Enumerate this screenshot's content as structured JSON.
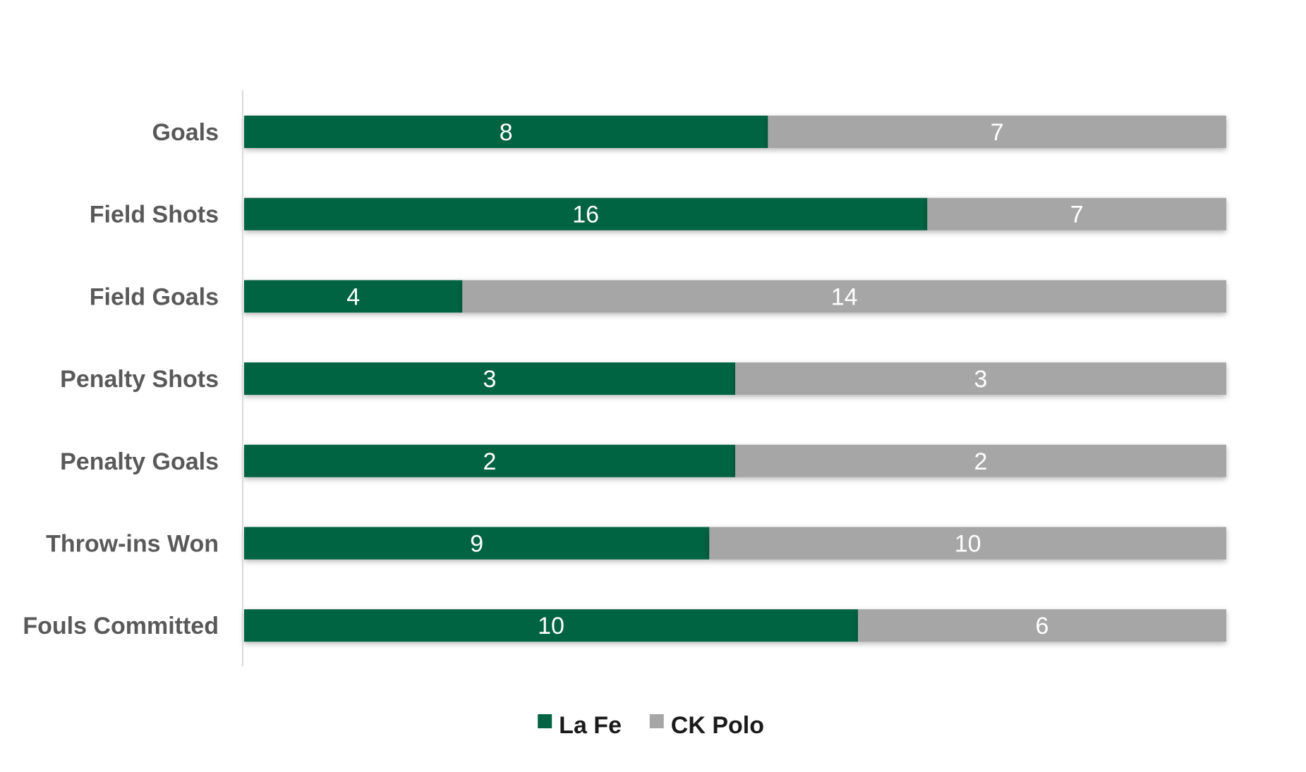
{
  "chart_data": {
    "type": "bar",
    "orientation": "horizontal",
    "stacked": "percent",
    "title": "",
    "xlabel": "",
    "ylabel": "",
    "categories": [
      "Goals",
      "Field Shots",
      "Field Goals",
      "Penalty Shots",
      "Penalty Goals",
      "Throw-ins Won",
      "Fouls Committed"
    ],
    "series": [
      {
        "name": "La Fe",
        "color": "#056443",
        "values": [
          8,
          16,
          4,
          3,
          2,
          9,
          10
        ]
      },
      {
        "name": "CK Polo",
        "color": "#a6a6a6",
        "values": [
          7,
          7,
          14,
          3,
          2,
          10,
          6
        ]
      }
    ],
    "data_labels": true,
    "grid": false,
    "legend_position": "bottom"
  }
}
